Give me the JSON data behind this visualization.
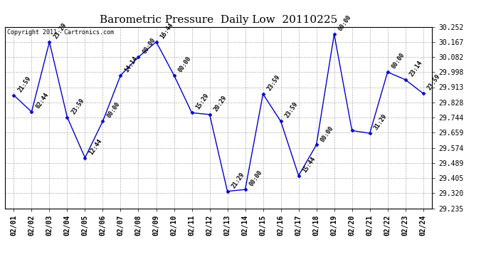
{
  "title": "Barometric Pressure  Daily Low  20110225",
  "copyright": "Copyright 2011  Cartronics.com",
  "dates": [
    "02/01",
    "02/02",
    "02/03",
    "02/04",
    "02/05",
    "02/06",
    "02/07",
    "02/08",
    "02/09",
    "02/10",
    "02/11",
    "02/12",
    "02/13",
    "02/14",
    "02/15",
    "02/16",
    "02/17",
    "02/18",
    "02/19",
    "02/20",
    "02/21",
    "02/22",
    "02/23",
    "02/24"
  ],
  "values": [
    29.868,
    29.775,
    30.167,
    29.745,
    29.518,
    29.723,
    29.98,
    30.082,
    30.167,
    29.98,
    29.77,
    29.76,
    29.33,
    29.34,
    29.875,
    29.722,
    29.418,
    29.59,
    30.21,
    29.67,
    29.655,
    29.998,
    29.955,
    29.878
  ],
  "annotations": [
    "21:59",
    "02:44",
    "23:29",
    "23:59",
    "12:44",
    "00:00",
    "14:14",
    "00:00",
    "16:44",
    "00:00",
    "15:29",
    "20:29",
    "21:29",
    "00:00",
    "23:59",
    "23:59",
    "15:44",
    "00:00",
    "00:00",
    "",
    "31:29",
    "00:00",
    "23:14",
    "23:59"
  ],
  "ylim": [
    29.235,
    30.252
  ],
  "yticks": [
    29.235,
    29.32,
    29.405,
    29.489,
    29.574,
    29.659,
    29.744,
    29.828,
    29.913,
    29.998,
    30.082,
    30.167,
    30.252
  ],
  "line_color": "#0000cc",
  "marker_color": "#0000cc",
  "grid_color": "#b0b0b0",
  "bg_color": "#ffffff",
  "title_fontsize": 11,
  "annot_fontsize": 6,
  "tick_fontsize": 7,
  "copyright_fontsize": 6
}
